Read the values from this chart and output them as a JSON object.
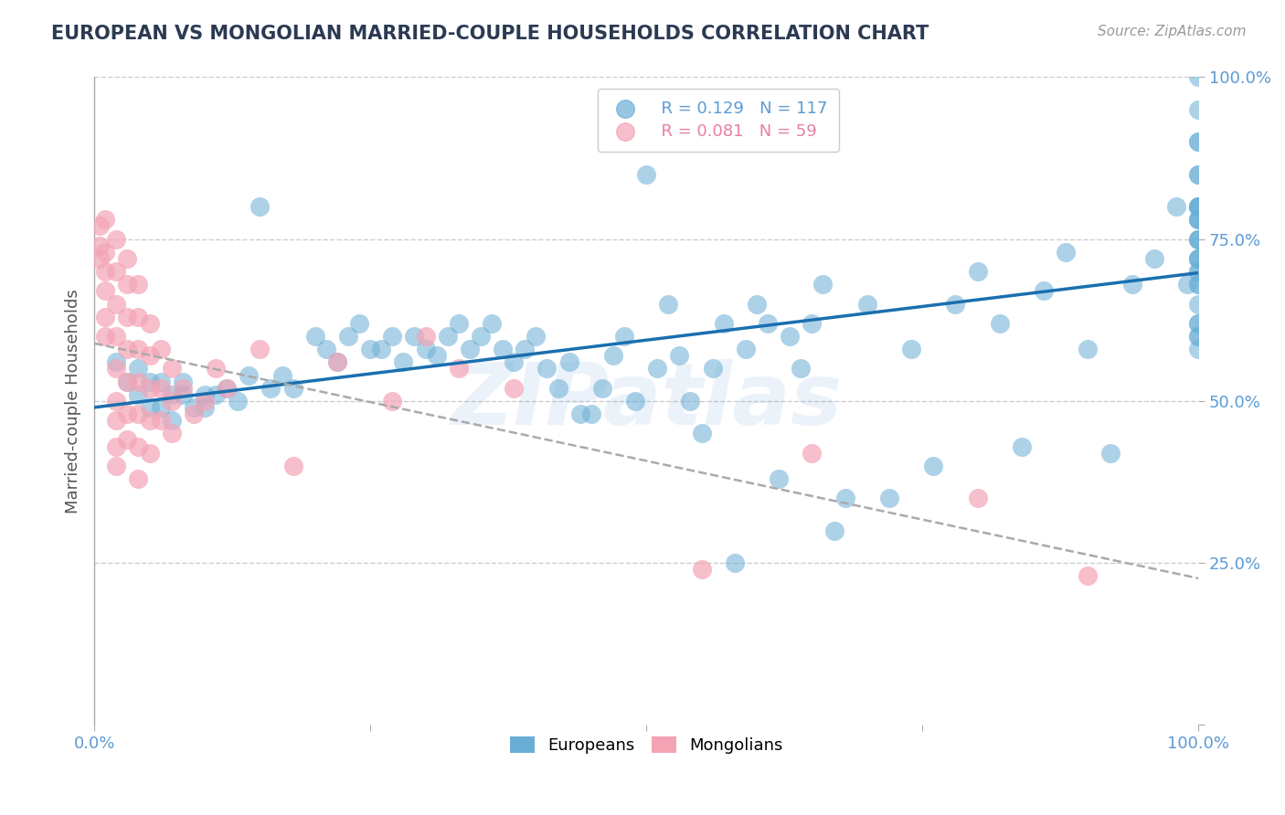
{
  "title": "EUROPEAN VS MONGOLIAN MARRIED-COUPLE HOUSEHOLDS CORRELATION CHART",
  "source": "Source: ZipAtlas.com",
  "ylabel": "Married-couple Households",
  "xlim": [
    0,
    1
  ],
  "ylim": [
    0,
    1
  ],
  "legend_r_values": [
    "R = 0.129",
    "R = 0.081"
  ],
  "legend_n_values": [
    "N = 117",
    "N = 59"
  ],
  "blue_color": "#6aaed6",
  "pink_color": "#f4a3b5",
  "blue_line_color": "#1a6faf",
  "grid_color": "#cccccc",
  "watermark": "ZIPatlas",
  "europeans_x": [
    0.02,
    0.03,
    0.04,
    0.04,
    0.05,
    0.05,
    0.06,
    0.06,
    0.07,
    0.07,
    0.08,
    0.08,
    0.09,
    0.1,
    0.1,
    0.11,
    0.12,
    0.13,
    0.14,
    0.15,
    0.16,
    0.17,
    0.18,
    0.2,
    0.21,
    0.22,
    0.23,
    0.24,
    0.25,
    0.26,
    0.27,
    0.28,
    0.29,
    0.3,
    0.31,
    0.32,
    0.33,
    0.34,
    0.35,
    0.36,
    0.37,
    0.38,
    0.39,
    0.4,
    0.41,
    0.42,
    0.43,
    0.44,
    0.45,
    0.46,
    0.47,
    0.48,
    0.49,
    0.5,
    0.51,
    0.52,
    0.53,
    0.54,
    0.55,
    0.56,
    0.57,
    0.58,
    0.59,
    0.6,
    0.61,
    0.62,
    0.63,
    0.64,
    0.65,
    0.66,
    0.67,
    0.68,
    0.7,
    0.72,
    0.74,
    0.76,
    0.78,
    0.8,
    0.82,
    0.84,
    0.86,
    0.88,
    0.9,
    0.92,
    0.94,
    0.96,
    0.98,
    0.99,
    1.0,
    1.0,
    1.0,
    1.0,
    1.0,
    1.0,
    1.0,
    1.0,
    1.0,
    1.0,
    1.0,
    1.0,
    1.0,
    1.0,
    1.0,
    1.0,
    1.0,
    1.0,
    1.0,
    1.0,
    1.0,
    1.0,
    1.0,
    1.0,
    1.0,
    1.0,
    1.0,
    1.0,
    1.0
  ],
  "europeans_y": [
    0.56,
    0.53,
    0.51,
    0.55,
    0.49,
    0.53,
    0.49,
    0.53,
    0.47,
    0.51,
    0.51,
    0.53,
    0.49,
    0.49,
    0.51,
    0.51,
    0.52,
    0.5,
    0.54,
    0.8,
    0.52,
    0.54,
    0.52,
    0.6,
    0.58,
    0.56,
    0.6,
    0.62,
    0.58,
    0.58,
    0.6,
    0.56,
    0.6,
    0.58,
    0.57,
    0.6,
    0.62,
    0.58,
    0.6,
    0.62,
    0.58,
    0.56,
    0.58,
    0.6,
    0.55,
    0.52,
    0.56,
    0.48,
    0.48,
    0.52,
    0.57,
    0.6,
    0.5,
    0.85,
    0.55,
    0.65,
    0.57,
    0.5,
    0.45,
    0.55,
    0.62,
    0.25,
    0.58,
    0.65,
    0.62,
    0.38,
    0.6,
    0.55,
    0.62,
    0.68,
    0.3,
    0.35,
    0.65,
    0.35,
    0.58,
    0.4,
    0.65,
    0.7,
    0.62,
    0.43,
    0.67,
    0.73,
    0.58,
    0.42,
    0.68,
    0.72,
    0.8,
    0.68,
    0.75,
    0.62,
    0.9,
    0.6,
    0.78,
    0.72,
    0.8,
    0.85,
    0.7,
    0.75,
    0.9,
    0.78,
    0.95,
    0.8,
    1.0,
    0.68,
    0.75,
    0.62,
    0.58,
    0.72,
    0.8,
    0.85,
    0.7,
    0.78,
    0.6,
    0.65,
    0.72,
    0.8,
    0.68
  ],
  "mongolians_x": [
    0.005,
    0.005,
    0.005,
    0.01,
    0.01,
    0.01,
    0.01,
    0.01,
    0.01,
    0.02,
    0.02,
    0.02,
    0.02,
    0.02,
    0.02,
    0.02,
    0.02,
    0.02,
    0.03,
    0.03,
    0.03,
    0.03,
    0.03,
    0.03,
    0.03,
    0.04,
    0.04,
    0.04,
    0.04,
    0.04,
    0.04,
    0.04,
    0.05,
    0.05,
    0.05,
    0.05,
    0.05,
    0.06,
    0.06,
    0.06,
    0.07,
    0.07,
    0.07,
    0.08,
    0.09,
    0.1,
    0.11,
    0.12,
    0.15,
    0.18,
    0.22,
    0.27,
    0.3,
    0.33,
    0.38,
    0.55,
    0.65,
    0.8,
    0.9
  ],
  "mongolians_y": [
    0.77,
    0.74,
    0.72,
    0.78,
    0.73,
    0.7,
    0.67,
    0.63,
    0.6,
    0.75,
    0.7,
    0.65,
    0.6,
    0.55,
    0.5,
    0.47,
    0.43,
    0.4,
    0.72,
    0.68,
    0.63,
    0.58,
    0.53,
    0.48,
    0.44,
    0.68,
    0.63,
    0.58,
    0.53,
    0.48,
    0.43,
    0.38,
    0.62,
    0.57,
    0.52,
    0.47,
    0.42,
    0.58,
    0.52,
    0.47,
    0.55,
    0.5,
    0.45,
    0.52,
    0.48,
    0.5,
    0.55,
    0.52,
    0.58,
    0.4,
    0.56,
    0.5,
    0.6,
    0.55,
    0.52,
    0.24,
    0.42,
    0.35,
    0.23
  ]
}
